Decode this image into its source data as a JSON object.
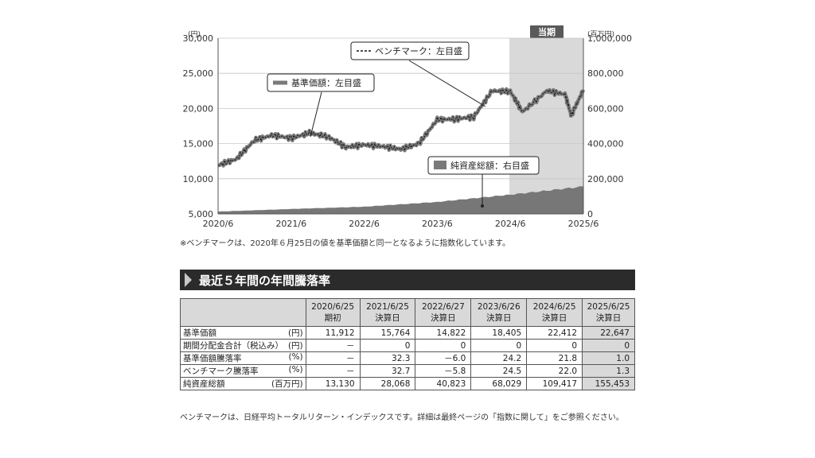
{
  "chart_data": {
    "type": "line",
    "left_axis_unit": "(円)",
    "right_axis_unit": "(百万円)",
    "left_ticks": [
      "30,000",
      "25,000",
      "20,000",
      "15,000",
      "10,000",
      "5,000"
    ],
    "left_tick_values": [
      30000,
      25000,
      20000,
      15000,
      10000,
      5000
    ],
    "right_ticks": [
      "1,000,000",
      "800,000",
      "600,000",
      "400,000",
      "200,000",
      "0"
    ],
    "right_tick_values": [
      1000000,
      800000,
      600000,
      400000,
      200000,
      0
    ],
    "x_ticks": [
      "2020/6",
      "2021/6",
      "2022/6",
      "2023/6",
      "2024/6",
      "2025/6"
    ],
    "ylim_left": [
      5000,
      30000
    ],
    "ylim_right": [
      0,
      1000000
    ],
    "current_period_label": "当期",
    "current_period_range": [
      "2024/6",
      "2025/6"
    ],
    "legend_nav": "基準価額：左目盛",
    "legend_benchmark": "ベンチマーク：左目盛",
    "legend_assets": "純資産総額：右目盛",
    "nav_series": {
      "x": [
        "2020/6",
        "2020/9",
        "2020/12",
        "2021/3",
        "2021/6",
        "2021/9",
        "2021/12",
        "2022/3",
        "2022/6",
        "2022/9",
        "2022/12",
        "2023/3",
        "2023/6",
        "2023/9",
        "2023/12",
        "2024/3",
        "2024/6",
        "2024/8",
        "2024/12",
        "2025/3",
        "2025/4",
        "2025/6"
      ],
      "values": [
        11912,
        12800,
        15500,
        16200,
        15764,
        16500,
        16000,
        14500,
        14822,
        14600,
        14200,
        15000,
        18405,
        18500,
        18800,
        22500,
        22412,
        19500,
        22500,
        22000,
        19000,
        22647
      ]
    },
    "net_assets_series": {
      "x": [
        "2020/6",
        "2021/6",
        "2022/6",
        "2023/6",
        "2024/6",
        "2025/6"
      ],
      "values": [
        13130,
        28068,
        40823,
        68029,
        109417,
        155453
      ]
    }
  },
  "footnote_chart": "※ベンチマークは、2020年６月25日の値を基準価額と同一となるように指数化しています。",
  "section_title": "最近５年間の年間騰落率",
  "table": {
    "columns": [
      {
        "date": "2020/6/25",
        "sub": "期初"
      },
      {
        "date": "2021/6/25",
        "sub": "決算日"
      },
      {
        "date": "2022/6/27",
        "sub": "決算日"
      },
      {
        "date": "2023/6/26",
        "sub": "決算日"
      },
      {
        "date": "2024/6/25",
        "sub": "決算日"
      },
      {
        "date": "2025/6/25",
        "sub": "決算日"
      }
    ],
    "rows": [
      {
        "label": "基準価額",
        "unit": "(円)",
        "cells": [
          "11,912",
          "15,764",
          "14,822",
          "18,405",
          "22,412",
          "22,647"
        ]
      },
      {
        "label": "期間分配金合計（税込み）",
        "unit": "(円)",
        "cells": [
          "－",
          "0",
          "0",
          "0",
          "0",
          "0"
        ]
      },
      {
        "label": "基準価額騰落率",
        "unit": "(%)",
        "cells": [
          "－",
          "32.3",
          "－6.0",
          "24.2",
          "21.8",
          "1.0"
        ]
      },
      {
        "label": "ベンチマーク騰落率",
        "unit": "(%)",
        "cells": [
          "－",
          "32.7",
          "－5.8",
          "24.5",
          "22.0",
          "1.3"
        ]
      },
      {
        "label": "純資産総額",
        "unit": "(百万円)",
        "cells": [
          "13,130",
          "28,068",
          "40,823",
          "68,029",
          "109,417",
          "155,453"
        ]
      }
    ]
  },
  "footnote_bottom": "ベンチマークは、日経平均トータルリターン・インデックスです。詳細は最終ページの「指数に関して」をご参照ください。"
}
